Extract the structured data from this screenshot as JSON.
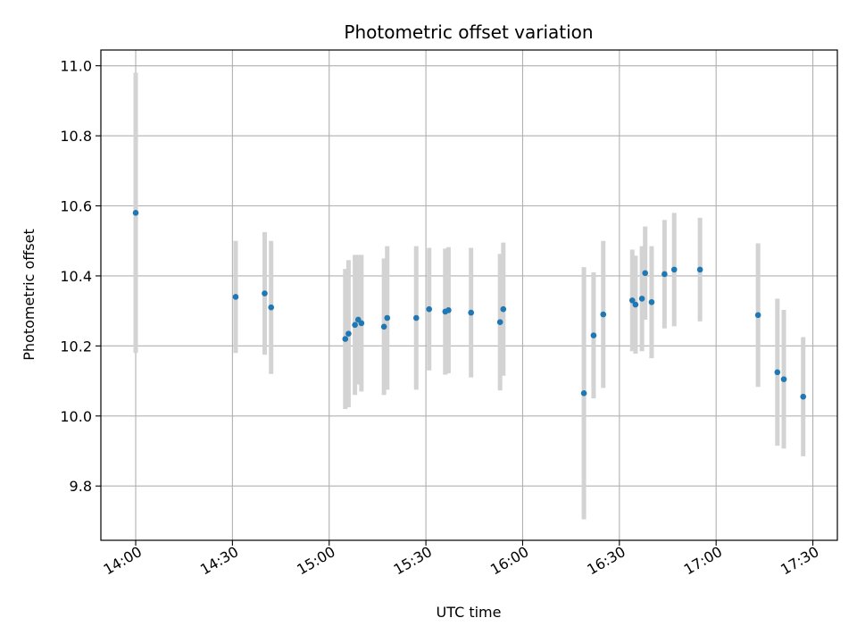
{
  "chart_data": {
    "type": "scatter",
    "title": "Photometric offset variation",
    "xlabel": "UTC time",
    "ylabel": "Photometric offset",
    "x_ticks": [
      "14:00",
      "14:30",
      "15:00",
      "15:30",
      "16:00",
      "16:30",
      "17:00",
      "17:30"
    ],
    "x_tick_minutes": [
      840,
      870,
      900,
      930,
      960,
      990,
      1020,
      1050
    ],
    "xlim_minutes": [
      829.2,
      1057.6
    ],
    "y_ticks": [
      "9.8",
      "10.0",
      "10.2",
      "10.4",
      "10.6",
      "10.8",
      "11.0"
    ],
    "y_tick_values": [
      9.8,
      10.0,
      10.2,
      10.4,
      10.6,
      10.8,
      11.0
    ],
    "ylim": [
      9.645,
      11.045
    ],
    "grid": true,
    "marker_color": "#1f77b4",
    "errorbar_color": "#d3d3d3",
    "points": [
      {
        "x": "14:00",
        "y": 10.58,
        "err": 0.4
      },
      {
        "x": "14:31",
        "y": 10.34,
        "err": 0.16
      },
      {
        "x": "14:40",
        "y": 10.35,
        "err": 0.175
      },
      {
        "x": "14:42",
        "y": 10.31,
        "err": 0.19
      },
      {
        "x": "15:05",
        "y": 10.22,
        "err": 0.2
      },
      {
        "x": "15:06",
        "y": 10.235,
        "err": 0.21
      },
      {
        "x": "15:08",
        "y": 10.26,
        "err": 0.2
      },
      {
        "x": "15:09",
        "y": 10.275,
        "err": 0.185
      },
      {
        "x": "15:10",
        "y": 10.265,
        "err": 0.195
      },
      {
        "x": "15:17",
        "y": 10.255,
        "err": 0.195
      },
      {
        "x": "15:18",
        "y": 10.28,
        "err": 0.205
      },
      {
        "x": "15:27",
        "y": 10.28,
        "err": 0.205
      },
      {
        "x": "15:31",
        "y": 10.305,
        "err": 0.175
      },
      {
        "x": "15:36",
        "y": 10.298,
        "err": 0.18
      },
      {
        "x": "15:37",
        "y": 10.302,
        "err": 0.18
      },
      {
        "x": "15:44",
        "y": 10.295,
        "err": 0.185
      },
      {
        "x": "15:53",
        "y": 10.268,
        "err": 0.195
      },
      {
        "x": "15:54",
        "y": 10.305,
        "err": 0.19
      },
      {
        "x": "16:19",
        "y": 10.065,
        "err": 0.36
      },
      {
        "x": "16:22",
        "y": 10.23,
        "err": 0.18
      },
      {
        "x": "16:25",
        "y": 10.29,
        "err": 0.21
      },
      {
        "x": "16:34",
        "y": 10.33,
        "err": 0.145
      },
      {
        "x": "16:35",
        "y": 10.318,
        "err": 0.14
      },
      {
        "x": "16:37",
        "y": 10.335,
        "err": 0.15
      },
      {
        "x": "16:38",
        "y": 10.408,
        "err": 0.133
      },
      {
        "x": "16:40",
        "y": 10.325,
        "err": 0.16
      },
      {
        "x": "16:44",
        "y": 10.405,
        "err": 0.155
      },
      {
        "x": "16:47",
        "y": 10.418,
        "err": 0.162
      },
      {
        "x": "16:55",
        "y": 10.418,
        "err": 0.148
      },
      {
        "x": "17:13",
        "y": 10.288,
        "err": 0.205
      },
      {
        "x": "17:19",
        "y": 10.125,
        "err": 0.21
      },
      {
        "x": "17:21",
        "y": 10.105,
        "err": 0.198
      },
      {
        "x": "17:27",
        "y": 10.055,
        "err": 0.17
      }
    ]
  }
}
